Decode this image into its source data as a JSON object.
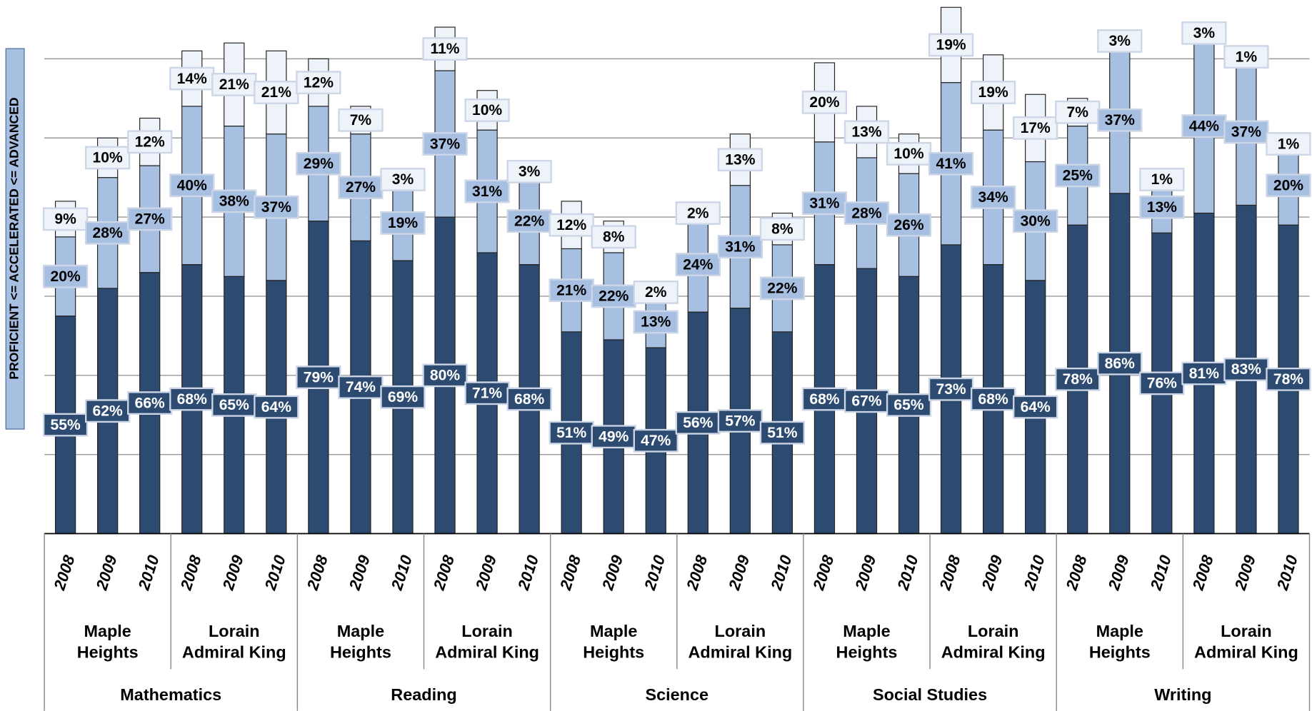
{
  "chart_data": {
    "type": "stacked_bar",
    "ylabel": "PROFICIENT <= ACCELERATED <= ADVANCED",
    "ylim": [
      0,
      134
    ],
    "grid_lines": [
      20,
      40,
      60,
      80,
      100,
      120
    ],
    "categories": [
      "2008",
      "2009",
      "2010",
      "2008",
      "2009",
      "2010",
      "2008",
      "2009",
      "2010",
      "2008",
      "2009",
      "2010",
      "2008",
      "2009",
      "2010",
      "2008",
      "2009",
      "2010",
      "2008",
      "2009",
      "2010",
      "2008",
      "2009",
      "2010",
      "2008",
      "2009",
      "2010",
      "2008",
      "2009",
      "2010"
    ],
    "schools": [
      [
        "Maple",
        "Heights"
      ],
      [
        "Lorain",
        "Admiral King"
      ],
      [
        "Maple",
        "Heights"
      ],
      [
        "Lorain",
        "Admiral King"
      ],
      [
        "Maple",
        "Heights"
      ],
      [
        "Lorain",
        "Admiral King"
      ],
      [
        "Maple",
        "Heights"
      ],
      [
        "Lorain",
        "Admiral King"
      ],
      [
        "Maple",
        "Heights"
      ],
      [
        "Lorain",
        "Admiral King"
      ]
    ],
    "subjects": [
      "Mathematics",
      "Reading",
      "Science",
      "Social Studies",
      "Writing"
    ],
    "series": [
      {
        "color": "#2d4b70",
        "label_text_color": "#ffffff",
        "values": [
          55,
          62,
          66,
          68,
          65,
          64,
          79,
          74,
          69,
          80,
          71,
          68,
          51,
          49,
          47,
          56,
          57,
          51,
          68,
          67,
          65,
          73,
          68,
          64,
          78,
          86,
          76,
          81,
          83,
          78
        ],
        "value_labels": [
          "55%",
          "62%",
          "66%",
          "68%",
          "65%",
          "64%",
          "79%",
          "74%",
          "69%",
          "80%",
          "71%",
          "68%",
          "51%",
          "49%",
          "47%",
          "56%",
          "57%",
          "51%",
          "68%",
          "67%",
          "65%",
          "73%",
          "68%",
          "64%",
          "78%",
          "86%",
          "76%",
          "81%",
          "83%",
          "78%"
        ]
      },
      {
        "color": "#a7bfe1",
        "label_text_color": "#000000",
        "values": [
          20,
          28,
          27,
          40,
          38,
          37,
          29,
          27,
          19,
          37,
          31,
          22,
          21,
          22,
          13,
          24,
          31,
          22,
          31,
          28,
          26,
          41,
          34,
          30,
          25,
          37,
          13,
          44,
          37,
          20
        ],
        "value_labels": [
          "20%",
          "28%",
          "27%",
          "40%",
          "38%",
          "37%",
          "29%",
          "27%",
          "19%",
          "37%",
          "31%",
          "22%",
          "21%",
          "22%",
          "13%",
          "24%",
          "31%",
          "22%",
          "31%",
          "28%",
          "26%",
          "41%",
          "34%",
          "30%",
          "25%",
          "37%",
          "13%",
          "44%",
          "37%",
          "20%"
        ]
      },
      {
        "color": "#eef2f9",
        "label_text_color": "#000000",
        "values": [
          9,
          10,
          12,
          14,
          21,
          21,
          12,
          7,
          3,
          11,
          10,
          3,
          12,
          8,
          2,
          2,
          13,
          8,
          20,
          13,
          10,
          19,
          19,
          17,
          7,
          3,
          1,
          3,
          1,
          1
        ],
        "value_labels": [
          "9%",
          "10%",
          "12%",
          "14%",
          "21%",
          "21%",
          "12%",
          "7%",
          "3%",
          "11%",
          "10%",
          "3%",
          "12%",
          "8%",
          "2%",
          "2%",
          "13%",
          "8%",
          "20%",
          "13%",
          "10%",
          "19%",
          "19%",
          "17%",
          "7%",
          "3%",
          "1%",
          "3%",
          "1%",
          "1%"
        ]
      }
    ]
  }
}
